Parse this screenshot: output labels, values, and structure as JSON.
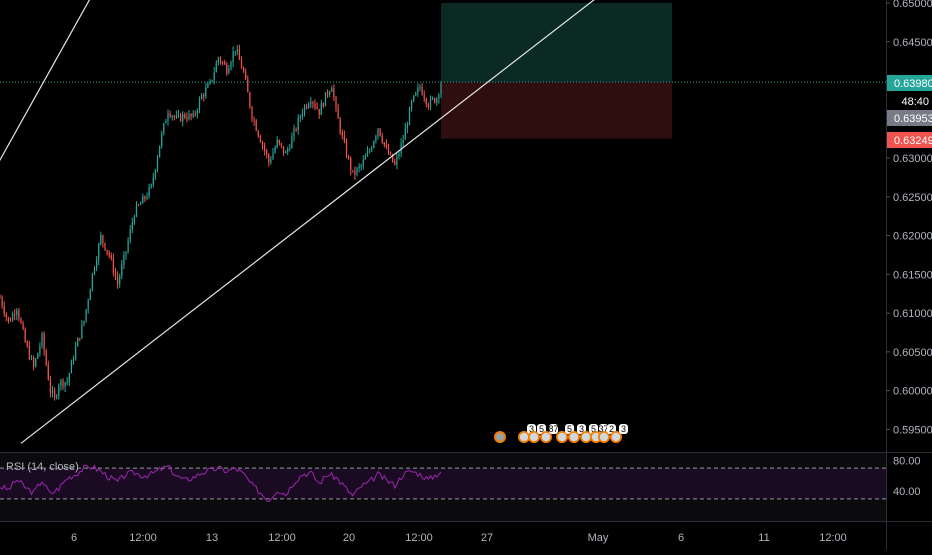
{
  "chart_data": [
    {
      "type": "candlestick",
      "pane": "price",
      "x_tick_labels": [
        "6",
        "12:00",
        "13",
        "12:00",
        "20",
        "12:00",
        "27",
        "May",
        "6",
        "11",
        "12:00"
      ],
      "y_tick_labels": [
        "0.65000",
        "0.64500",
        "0.64000",
        "0.63500",
        "0.63000",
        "0.62500",
        "0.62000",
        "0.61500",
        "0.61000",
        "0.60500",
        "0.60000",
        "0.59500"
      ],
      "ylim": [
        0.5935,
        0.65
      ],
      "close_path": [
        [
          0,
          0.612
        ],
        [
          2,
          0.6088
        ],
        [
          4,
          0.6108
        ],
        [
          6,
          0.6062
        ],
        [
          8,
          0.603
        ],
        [
          10,
          0.6068
        ],
        [
          12,
          0.6
        ],
        [
          13,
          0.5988
        ],
        [
          14,
          0.601
        ],
        [
          16,
          0.6012
        ],
        [
          18,
          0.6055
        ],
        [
          20,
          0.609
        ],
        [
          22,
          0.615
        ],
        [
          24,
          0.6198
        ],
        [
          26,
          0.6175
        ],
        [
          28,
          0.6138
        ],
        [
          30,
          0.618
        ],
        [
          32,
          0.623
        ],
        [
          34,
          0.6245
        ],
        [
          36,
          0.6262
        ],
        [
          38,
          0.6318
        ],
        [
          40,
          0.6362
        ],
        [
          42,
          0.635
        ],
        [
          44,
          0.6355
        ],
        [
          46,
          0.6352
        ],
        [
          48,
          0.638
        ],
        [
          50,
          0.6395
        ],
        [
          52,
          0.643
        ],
        [
          54,
          0.6415
        ],
        [
          56,
          0.6442
        ],
        [
          58,
          0.641
        ],
        [
          60,
          0.6355
        ],
        [
          62,
          0.6325
        ],
        [
          64,
          0.6295
        ],
        [
          66,
          0.632
        ],
        [
          68,
          0.6305
        ],
        [
          70,
          0.6332
        ],
        [
          72,
          0.6362
        ],
        [
          74,
          0.6378
        ],
        [
          76,
          0.636
        ],
        [
          78,
          0.6385
        ],
        [
          79,
          0.6395
        ],
        [
          80,
          0.636
        ],
        [
          82,
          0.6315
        ],
        [
          84,
          0.6278
        ],
        [
          86,
          0.629
        ],
        [
          88,
          0.631
        ],
        [
          90,
          0.634
        ],
        [
          92,
          0.631
        ],
        [
          94,
          0.629
        ],
        [
          96,
          0.6325
        ],
        [
          98,
          0.637
        ],
        [
          100,
          0.6392
        ],
        [
          102,
          0.637
        ],
        [
          104,
          0.6378
        ],
        [
          105,
          0.6398
        ]
      ],
      "trend_channel": {
        "upper": {
          "from": [
            -8,
            0.622
          ],
          "to": [
            25,
            0.654
          ]
        },
        "lower": {
          "from": [
            5,
            0.5932
          ],
          "to": [
            150,
            0.654
          ]
        }
      },
      "position": {
        "target": 0.65,
        "entry": 0.6398,
        "stop": 0.63249,
        "x_from": 105,
        "x_to": 160,
        "profit_color": "#0b2a24",
        "loss_color": "#2e0e0e"
      },
      "price_labels": [
        {
          "text": "0.63980",
          "color": "#26a69a"
        },
        {
          "text": "48:40",
          "color": "#000000"
        },
        {
          "text": "0.63953",
          "color": "#787b86"
        },
        {
          "text": "0.63249",
          "color": "#ef5350"
        }
      ],
      "event_markers": [
        "3",
        "5",
        "87",
        "5",
        "3",
        "5",
        "37",
        "2",
        "3"
      ]
    },
    {
      "type": "line",
      "pane": "rsi",
      "title": "RSI (14, close)",
      "y_tick_labels": [
        "80.00",
        "40.00"
      ],
      "ylim": [
        0,
        100
      ],
      "bands": [
        70,
        30
      ],
      "series": [
        {
          "values": [
            [
              0,
              46
            ],
            [
              2,
              42
            ],
            [
              4,
              55
            ],
            [
              6,
              45
            ],
            [
              8,
              38
            ],
            [
              10,
              54
            ],
            [
              12,
              36
            ],
            [
              14,
              44
            ],
            [
              16,
              57
            ],
            [
              18,
              62
            ],
            [
              20,
              70
            ],
            [
              22,
              72
            ],
            [
              24,
              66
            ],
            [
              26,
              58
            ],
            [
              28,
              52
            ],
            [
              30,
              62
            ],
            [
              32,
              64
            ],
            [
              34,
              60
            ],
            [
              36,
              62
            ],
            [
              38,
              68
            ],
            [
              40,
              72
            ],
            [
              42,
              60
            ],
            [
              44,
              54
            ],
            [
              46,
              58
            ],
            [
              48,
              64
            ],
            [
              50,
              67
            ],
            [
              52,
              70
            ],
            [
              54,
              66
            ],
            [
              56,
              70
            ],
            [
              58,
              62
            ],
            [
              60,
              48
            ],
            [
              62,
              38
            ],
            [
              64,
              28
            ],
            [
              66,
              42
            ],
            [
              68,
              36
            ],
            [
              70,
              52
            ],
            [
              72,
              62
            ],
            [
              74,
              64
            ],
            [
              76,
              50
            ],
            [
              78,
              62
            ],
            [
              80,
              58
            ],
            [
              82,
              46
            ],
            [
              84,
              34
            ],
            [
              86,
              46
            ],
            [
              88,
              52
            ],
            [
              90,
              62
            ],
            [
              92,
              54
            ],
            [
              94,
              48
            ],
            [
              96,
              62
            ],
            [
              98,
              66
            ],
            [
              100,
              62
            ],
            [
              102,
              55
            ],
            [
              104,
              62
            ],
            [
              105,
              66
            ]
          ],
          "color": "#9c27b0"
        }
      ]
    }
  ]
}
